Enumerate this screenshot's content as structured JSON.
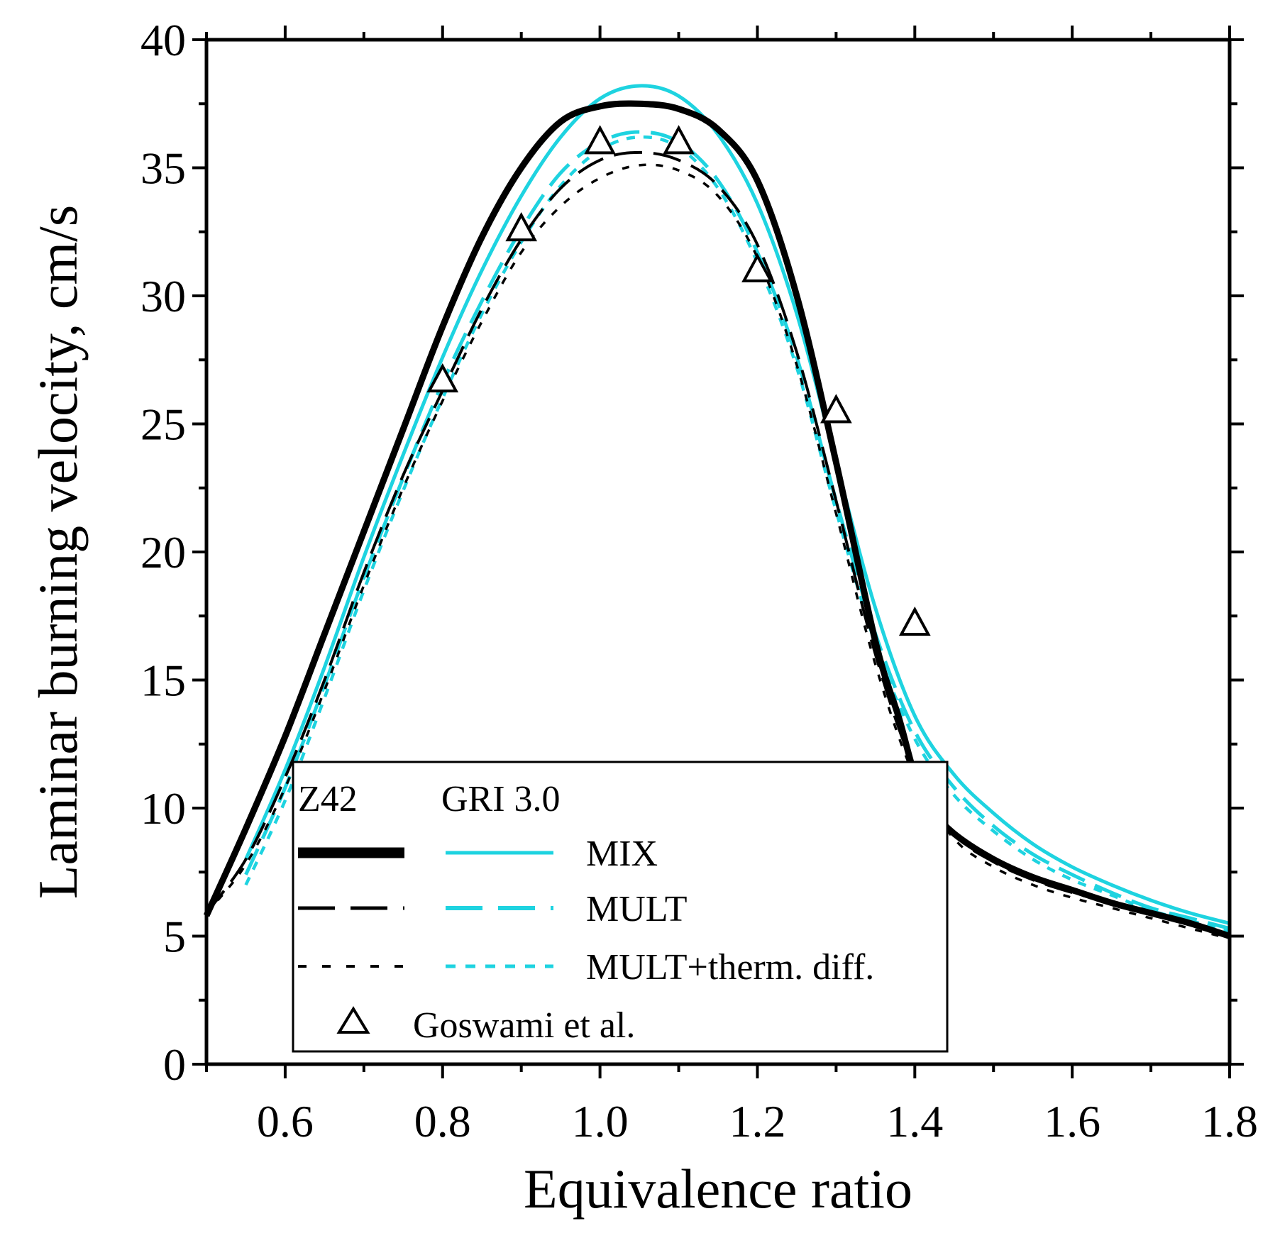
{
  "chart_data": {
    "type": "line",
    "title": "",
    "xlabel": "Equivalence ratio",
    "ylabel": "Laminar burning velocity, cm/s",
    "xlim": [
      0.5,
      1.8
    ],
    "ylim": [
      0,
      40
    ],
    "xticks": [
      0.6,
      0.8,
      1.0,
      1.2,
      1.4,
      1.6,
      1.8
    ],
    "xtick_labels": [
      "0.6",
      "0.8",
      "1.0",
      "1.2",
      "1.4",
      "1.6",
      "1.8"
    ],
    "yticks": [
      0,
      5,
      10,
      15,
      20,
      25,
      30,
      35,
      40
    ],
    "ytick_labels": [
      "0",
      "5",
      "10",
      "15",
      "20",
      "25",
      "30",
      "35",
      "40"
    ],
    "legend": {
      "placement": "lower-center",
      "header_left": "Z42",
      "header_right": "GRI 3.0",
      "rows": [
        "MIX",
        "MULT",
        "MULT+therm. diff."
      ],
      "marker_label": "Goswami et al."
    },
    "colors": {
      "z42": "#000000",
      "gri": "#1ed3e0"
    },
    "series": [
      {
        "name": "Z42 MIX",
        "mechanism": "Z42",
        "model": "MIX",
        "style": "solid-thick",
        "x": [
          0.5,
          0.55,
          0.6,
          0.65,
          0.7,
          0.75,
          0.8,
          0.85,
          0.9,
          0.95,
          1.0,
          1.05,
          1.1,
          1.15,
          1.2,
          1.25,
          1.3,
          1.35,
          1.38,
          1.4,
          1.42,
          1.45,
          1.5,
          1.55,
          1.6,
          1.65,
          1.7,
          1.75,
          1.8
        ],
        "y": [
          5.8,
          9.2,
          12.8,
          16.8,
          20.8,
          24.8,
          28.8,
          32.3,
          35.0,
          36.8,
          37.4,
          37.5,
          37.3,
          36.5,
          34.5,
          30.0,
          23.5,
          16.5,
          13.5,
          11.3,
          10.0,
          9.0,
          8.0,
          7.3,
          6.8,
          6.3,
          5.9,
          5.5,
          5.0
        ]
      },
      {
        "name": "Z42 MULT",
        "mechanism": "Z42",
        "model": "MULT",
        "style": "dashed",
        "x": [
          0.5,
          0.55,
          0.6,
          0.65,
          0.7,
          0.75,
          0.8,
          0.85,
          0.9,
          0.95,
          1.0,
          1.05,
          1.1,
          1.15,
          1.2,
          1.25,
          1.3,
          1.35,
          1.4,
          1.45,
          1.5,
          1.55,
          1.6,
          1.65,
          1.7,
          1.75,
          1.8
        ],
        "y": [
          5.9,
          8.0,
          11.2,
          15.0,
          19.2,
          23.0,
          26.3,
          29.5,
          32.2,
          34.2,
          35.3,
          35.6,
          35.3,
          34.3,
          32.0,
          27.8,
          22.0,
          16.0,
          11.5,
          9.0,
          7.9,
          7.2,
          6.7,
          6.3,
          5.9,
          5.5,
          5.0
        ]
      },
      {
        "name": "Z42 MULT+therm. diff.",
        "mechanism": "Z42",
        "model": "MULT+therm. diff.",
        "style": "dotted",
        "x": [
          0.5,
          0.55,
          0.6,
          0.65,
          0.7,
          0.75,
          0.8,
          0.85,
          0.9,
          0.95,
          1.0,
          1.05,
          1.1,
          1.15,
          1.2,
          1.25,
          1.3,
          1.35,
          1.4,
          1.45,
          1.5,
          1.55,
          1.6,
          1.65,
          1.7,
          1.75,
          1.8
        ],
        "y": [
          5.9,
          7.8,
          10.8,
          14.6,
          18.7,
          22.5,
          25.9,
          29.0,
          31.7,
          33.5,
          34.6,
          35.1,
          34.9,
          33.9,
          31.5,
          27.3,
          21.5,
          15.6,
          11.2,
          8.8,
          7.7,
          7.0,
          6.5,
          6.1,
          5.7,
          5.3,
          4.9
        ]
      },
      {
        "name": "GRI 3.0 MIX",
        "mechanism": "GRI 3.0",
        "model": "MIX",
        "style": "solid",
        "x": [
          0.55,
          0.6,
          0.65,
          0.7,
          0.75,
          0.8,
          0.85,
          0.9,
          0.95,
          1.0,
          1.05,
          1.1,
          1.15,
          1.2,
          1.25,
          1.3,
          1.35,
          1.4,
          1.45,
          1.5,
          1.55,
          1.6,
          1.65,
          1.7,
          1.75,
          1.8
        ],
        "y": [
          8.0,
          11.5,
          15.5,
          19.8,
          23.8,
          27.6,
          31.0,
          33.9,
          36.2,
          37.7,
          38.2,
          37.8,
          36.3,
          33.6,
          29.3,
          23.5,
          17.8,
          13.6,
          11.3,
          9.8,
          8.6,
          7.7,
          7.0,
          6.4,
          5.9,
          5.5
        ]
      },
      {
        "name": "GRI 3.0 MULT",
        "mechanism": "GRI 3.0",
        "model": "MULT",
        "style": "dashed",
        "x": [
          0.55,
          0.6,
          0.65,
          0.7,
          0.75,
          0.8,
          0.85,
          0.9,
          0.95,
          1.0,
          1.05,
          1.1,
          1.15,
          1.2,
          1.25,
          1.3,
          1.35,
          1.4,
          1.45,
          1.5,
          1.55,
          1.6,
          1.65,
          1.7,
          1.75,
          1.8
        ],
        "y": [
          7.4,
          10.8,
          14.8,
          19.0,
          22.9,
          26.6,
          29.8,
          32.6,
          34.8,
          36.0,
          36.4,
          36.0,
          34.5,
          31.7,
          27.6,
          22.0,
          16.8,
          13.0,
          10.8,
          9.3,
          8.2,
          7.4,
          6.7,
          6.1,
          5.7,
          5.3
        ]
      },
      {
        "name": "GRI 3.0 MULT+therm. diff.",
        "mechanism": "GRI 3.0",
        "model": "MULT+therm. diff.",
        "style": "dotted",
        "x": [
          0.55,
          0.6,
          0.65,
          0.7,
          0.75,
          0.8,
          0.85,
          0.9,
          0.95,
          1.0,
          1.05,
          1.1,
          1.15,
          1.2,
          1.25,
          1.3,
          1.35,
          1.4,
          1.45,
          1.5,
          1.55,
          1.6,
          1.65,
          1.7,
          1.75,
          1.8
        ],
        "y": [
          7.0,
          10.3,
          14.3,
          18.5,
          22.4,
          26.0,
          29.3,
          32.1,
          34.3,
          35.7,
          36.2,
          35.8,
          34.2,
          31.3,
          27.2,
          21.6,
          16.4,
          12.7,
          10.5,
          9.1,
          8.0,
          7.2,
          6.6,
          6.0,
          5.6,
          5.2
        ]
      }
    ],
    "experimental": {
      "name": "Goswami et al.",
      "marker": "open-triangle",
      "x": [
        0.8,
        0.9,
        1.0,
        1.1,
        1.2,
        1.3,
        1.4
      ],
      "y": [
        26.7,
        32.6,
        36.0,
        36.0,
        31.0,
        25.5,
        17.2
      ]
    }
  }
}
